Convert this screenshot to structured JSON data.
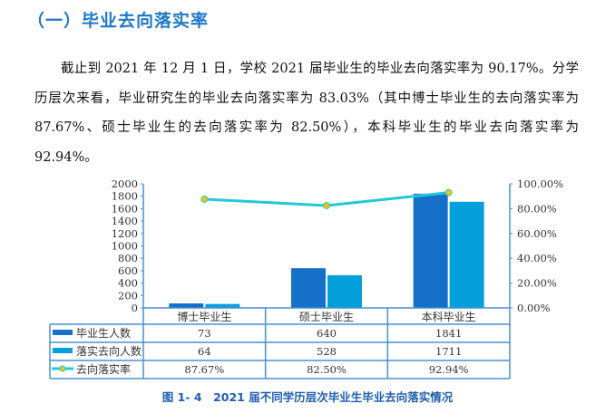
{
  "heading": "（一）毕业去向落实率",
  "paragraph": "截止到 2021 年 12 月 1 日，学校 2021 届毕业生的毕业去向落实率为 90.17%。分学历层次来看，毕业研究生的毕业去向落实率为 83.03%（其中博士毕业生的去向落实率为 87.67%、硕士毕业生的去向落实率为 82.50%），本科毕业生的毕业去向落实率为 92.94%。",
  "caption": "图 1- 4　2021 届不同学历层次毕业生毕业去向落实情况",
  "chart_data": {
    "type": "bar+line",
    "categories": [
      "博士毕业生",
      "硕士毕业生",
      "本科毕业生"
    ],
    "series": [
      {
        "name": "毕业生人数",
        "type": "bar",
        "values": [
          73,
          640,
          1841
        ],
        "labels": [
          "73",
          "640",
          "1841"
        ],
        "color": "#1570c8"
      },
      {
        "name": "落实去向人数",
        "type": "bar",
        "values": [
          64,
          528,
          1711
        ],
        "labels": [
          "64",
          "528",
          "1711"
        ],
        "color": "#04a0dc"
      },
      {
        "name": "去向落实率",
        "type": "line",
        "axis": "right",
        "values": [
          87.67,
          82.5,
          92.94
        ],
        "labels": [
          "87.67%",
          "82.50%",
          "92.94%"
        ],
        "color": "#22c8d8",
        "marker_color": "#f5c400"
      }
    ],
    "ylim": [
      0,
      2000
    ],
    "yticks": [
      "0",
      "200",
      "400",
      "600",
      "800",
      "1000",
      "1200",
      "1400",
      "1600",
      "1800",
      "2000"
    ],
    "y2lim": [
      0,
      100
    ],
    "y2ticks": [
      "0.00%",
      "20.00%",
      "40.00%",
      "60.00%",
      "80.00%",
      "100.00%"
    ],
    "legend": "data-table"
  }
}
